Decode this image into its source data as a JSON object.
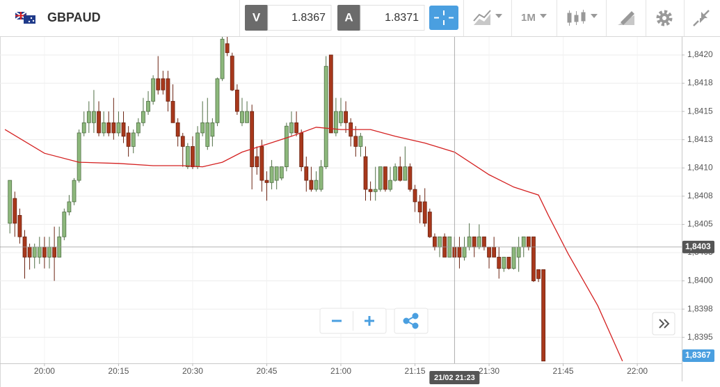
{
  "toolbar": {
    "symbol": "GBPAUD",
    "bid_label": "V",
    "bid": "1.8367",
    "ask_label": "A",
    "ask": "1.8371",
    "timeframe": "1M"
  },
  "chart_data": {
    "type": "candlestick",
    "xlim": [
      "19:51",
      "22:09"
    ],
    "ylim": [
      1.83927,
      1.84216
    ],
    "xticks": [
      "20:00",
      "20:15",
      "20:30",
      "20:45",
      "21:00",
      "21:15",
      "21:30",
      "21:45",
      "22:00"
    ],
    "yticks": [
      {
        "value": 1.842,
        "label": "1,8420"
      },
      {
        "value": 1.84175,
        "label": "1,8418"
      },
      {
        "value": 1.8415,
        "label": "1,8415"
      },
      {
        "value": 1.84125,
        "label": "1,8413"
      },
      {
        "value": 1.841,
        "label": "1,8410"
      },
      {
        "value": 1.84075,
        "label": "1,8408"
      },
      {
        "value": 1.8405,
        "label": "1,8405"
      },
      {
        "value": 1.84025,
        "label": "1,8403"
      },
      {
        "value": 1.84,
        "label": "1,8400"
      },
      {
        "value": 1.83975,
        "label": "1,8398"
      },
      {
        "value": 1.8395,
        "label": "1,8395"
      }
    ],
    "grid": true,
    "up_color": "#8db87c",
    "down_color": "#a8381c",
    "x": [
      "19:53",
      "19:54",
      "19:55",
      "19:56",
      "19:57",
      "19:58",
      "19:59",
      "20:00",
      "20:01",
      "20:02",
      "20:03",
      "20:04",
      "20:05",
      "20:06",
      "20:07",
      "20:08",
      "20:09",
      "20:10",
      "20:11",
      "20:12",
      "20:13",
      "20:14",
      "20:15",
      "20:16",
      "20:17",
      "20:18",
      "20:19",
      "20:20",
      "20:21",
      "20:22",
      "20:23",
      "20:24",
      "20:25",
      "20:26",
      "20:27",
      "20:28",
      "20:29",
      "20:30",
      "20:31",
      "20:32",
      "20:33",
      "20:34",
      "20:35",
      "20:36",
      "20:37",
      "20:38",
      "20:39",
      "20:40",
      "20:41",
      "20:42",
      "20:43",
      "20:44",
      "20:45",
      "20:46",
      "20:47",
      "20:48",
      "20:49",
      "20:50",
      "20:51",
      "20:52",
      "20:53",
      "20:54",
      "20:55",
      "20:56",
      "20:57",
      "20:58",
      "20:59",
      "21:00",
      "21:01",
      "21:02",
      "21:03",
      "21:04",
      "21:05",
      "21:06",
      "21:07",
      "21:08",
      "21:09",
      "21:10",
      "21:11",
      "21:12",
      "21:13",
      "21:14",
      "21:15",
      "21:16",
      "21:17",
      "21:18",
      "21:19",
      "21:20",
      "21:21",
      "21:22",
      "21:23",
      "21:24",
      "21:25",
      "21:26",
      "21:27",
      "21:28",
      "21:29",
      "21:30",
      "21:31",
      "21:32",
      "21:33",
      "21:34",
      "21:35",
      "21:36",
      "21:37",
      "21:38",
      "21:39",
      "21:40",
      "21:41"
    ],
    "open": [
      1.84051,
      1.84073,
      1.84058,
      1.84039,
      1.8403,
      1.84021,
      1.84021,
      1.8403,
      1.84021,
      1.8403,
      1.84021,
      1.84039,
      1.84061,
      1.8407,
      1.84089,
      1.84131,
      1.8414,
      1.8414,
      1.8415,
      1.84131,
      1.8414,
      1.8414,
      1.84131,
      1.8414,
      1.84131,
      1.84119,
      1.84131,
      1.8414,
      1.8415,
      1.84159,
      1.84179,
      1.84179,
      1.84179,
      1.84159,
      1.8414,
      1.84128,
      1.84101,
      1.84119,
      1.84101,
      1.84131,
      1.84119,
      1.84128,
      1.8414,
      1.84179,
      1.8421,
      1.84199,
      1.84169,
      1.8414,
      1.8414,
      1.8415,
      1.8411,
      1.84119,
      1.84089,
      1.84087,
      1.84089,
      1.84091,
      1.84101,
      1.84131,
      1.8414,
      1.84131,
      1.84101,
      1.84089,
      1.84081,
      1.84081,
      1.84101,
      1.842,
      1.84131,
      1.8414,
      1.8415,
      1.8414,
      1.84128,
      1.84119,
      1.8411,
      1.84081,
      1.84079,
      1.84081,
      1.84101,
      1.84081,
      1.84089,
      1.84101,
      1.84089,
      1.84101,
      1.84081,
      1.8407,
      1.8407,
      1.84061,
      1.84039,
      1.8403,
      1.84039,
      1.84021,
      1.8403,
      1.8403,
      1.84021,
      1.8403,
      1.84039,
      1.8403,
      1.84039,
      1.8403,
      1.8403,
      1.84021,
      1.84011,
      1.84021,
      1.84011,
      1.84021,
      1.8403,
      1.84039,
      1.84039,
      1.8401,
      1.8401
    ],
    "high": [
      1.84089,
      1.84079,
      1.84064,
      1.84045,
      1.84033,
      1.84033,
      1.84039,
      1.84039,
      1.84039,
      1.84048,
      1.84048,
      1.84064,
      1.84076,
      1.84091,
      1.84134,
      1.8415,
      1.84159,
      1.84169,
      1.84159,
      1.8415,
      1.8415,
      1.84162,
      1.8415,
      1.8415,
      1.84137,
      1.84134,
      1.84144,
      1.84162,
      1.84168,
      1.84182,
      1.84199,
      1.84186,
      1.84186,
      1.84174,
      1.84144,
      1.84131,
      1.84122,
      1.84128,
      1.84137,
      1.84159,
      1.84162,
      1.84144,
      1.8418,
      1.84216,
      1.84216,
      1.84202,
      1.84174,
      1.84162,
      1.84159,
      1.84156,
      1.84119,
      1.84125,
      1.84097,
      1.84107,
      1.84101,
      1.84101,
      1.8414,
      1.8415,
      1.8415,
      1.84134,
      1.8411,
      1.84101,
      1.84097,
      1.84107,
      1.84199,
      1.842,
      1.84162,
      1.84162,
      1.84159,
      1.84144,
      1.84137,
      1.84131,
      1.84119,
      1.84088,
      1.84101,
      1.84101,
      1.84101,
      1.84101,
      1.84104,
      1.8411,
      1.84119,
      1.84104,
      1.84085,
      1.84076,
      1.84082,
      1.84064,
      1.84042,
      1.84039,
      1.84042,
      1.84039,
      1.84039,
      1.84039,
      1.84039,
      1.84051,
      1.84039,
      1.8405,
      1.84039,
      1.8403,
      1.84039,
      1.8403,
      1.84021,
      1.84021,
      1.8403,
      1.84039,
      1.84039,
      1.84039,
      1.84039,
      1.8401,
      1.8401
    ],
    "low": [
      1.84042,
      1.84039,
      1.84033,
      1.84002,
      1.8401,
      1.84011,
      1.84015,
      1.84011,
      1.84011,
      1.84,
      1.84021,
      1.84036,
      1.84058,
      1.84067,
      1.84087,
      1.84128,
      1.84131,
      1.84131,
      1.84128,
      1.84128,
      1.84128,
      1.84125,
      1.84128,
      1.84122,
      1.8411,
      1.84113,
      1.84128,
      1.84137,
      1.84147,
      1.84156,
      1.84165,
      1.84165,
      1.8415,
      1.8414,
      1.84119,
      1.84101,
      1.84099,
      1.84099,
      1.84099,
      1.84128,
      1.84116,
      1.84119,
      1.84137,
      1.84177,
      1.84199,
      1.84168,
      1.84147,
      1.84137,
      1.8414,
      1.84081,
      1.84094,
      1.84079,
      1.84071,
      1.84081,
      1.84081,
      1.84089,
      1.84097,
      1.84128,
      1.84128,
      1.84097,
      1.84079,
      1.84079,
      1.84079,
      1.84079,
      1.84099,
      1.84131,
      1.84128,
      1.84137,
      1.84131,
      1.84119,
      1.8411,
      1.8411,
      1.84071,
      1.84071,
      1.84071,
      1.84079,
      1.84079,
      1.84079,
      1.84088,
      1.84088,
      1.84089,
      1.84079,
      1.84061,
      1.84051,
      1.84048,
      1.84038,
      1.84027,
      1.84021,
      1.84021,
      1.84021,
      1.84021,
      1.84011,
      1.84018,
      1.84027,
      1.84021,
      1.84028,
      1.84027,
      1.84011,
      1.84021,
      1.84002,
      1.84008,
      1.8401,
      1.8401,
      1.84008,
      1.84021,
      1.84027,
      1.83999,
      1.83999,
      1.83929
    ],
    "close": [
      1.84089,
      1.84051,
      1.84039,
      1.84021,
      1.84021,
      1.8403,
      1.8403,
      1.84021,
      1.8403,
      1.84021,
      1.84039,
      1.84061,
      1.8407,
      1.84089,
      1.84131,
      1.8414,
      1.8415,
      1.8415,
      1.84131,
      1.8414,
      1.84131,
      1.84131,
      1.8414,
      1.84128,
      1.84119,
      1.84131,
      1.8414,
      1.8415,
      1.84159,
      1.84179,
      1.84169,
      1.84169,
      1.84159,
      1.8414,
      1.84128,
      1.84119,
      1.84119,
      1.84101,
      1.84131,
      1.8414,
      1.8414,
      1.8414,
      1.84179,
      1.84214,
      1.84202,
      1.84169,
      1.8415,
      1.8415,
      1.8415,
      1.84101,
      1.84101,
      1.84089,
      1.84087,
      1.84101,
      1.84101,
      1.84101,
      1.84137,
      1.8414,
      1.84131,
      1.84101,
      1.84089,
      1.84081,
      1.84089,
      1.84101,
      1.8419,
      1.84131,
      1.8415,
      1.8415,
      1.8414,
      1.84128,
      1.84119,
      1.84128,
      1.84081,
      1.84079,
      1.84081,
      1.84101,
      1.84081,
      1.84089,
      1.84101,
      1.84089,
      1.84101,
      1.84081,
      1.8407,
      1.84061,
      1.84051,
      1.84039,
      1.8403,
      1.84039,
      1.84021,
      1.84039,
      1.84021,
      1.84021,
      1.8403,
      1.84039,
      1.8403,
      1.84039,
      1.8403,
      1.84021,
      1.84021,
      1.84011,
      1.84021,
      1.84011,
      1.8403,
      1.8403,
      1.84039,
      1.8403,
      1.84,
      1.84002,
      1.83929
    ],
    "ma": {
      "color": "#d42020",
      "x": [
        "19:52",
        "20:00",
        "20:07",
        "20:15",
        "20:22",
        "20:28",
        "20:32",
        "20:36",
        "20:40",
        "20:45",
        "20:50",
        "20:55",
        "21:00",
        "21:06",
        "21:11",
        "21:17",
        "21:23",
        "21:30",
        "21:35",
        "21:40",
        "21:42",
        "21:46",
        "21:52",
        "21:57"
      ],
      "values": [
        1.84134,
        1.84113,
        1.84105,
        1.84104,
        1.84102,
        1.84102,
        1.84101,
        1.84105,
        1.84114,
        1.84121,
        1.84128,
        1.84136,
        1.84134,
        1.84134,
        1.84128,
        1.84122,
        1.84114,
        1.84094,
        1.84083,
        1.84076,
        1.84058,
        1.84024,
        1.83978,
        1.83929
      ]
    },
    "crosshair": {
      "x": "21:23",
      "x_label": "21/02 21:23",
      "y": 1.8403,
      "y_label": "1,8403"
    },
    "last_price": {
      "value": 1.8367,
      "label": "1,8367"
    }
  }
}
